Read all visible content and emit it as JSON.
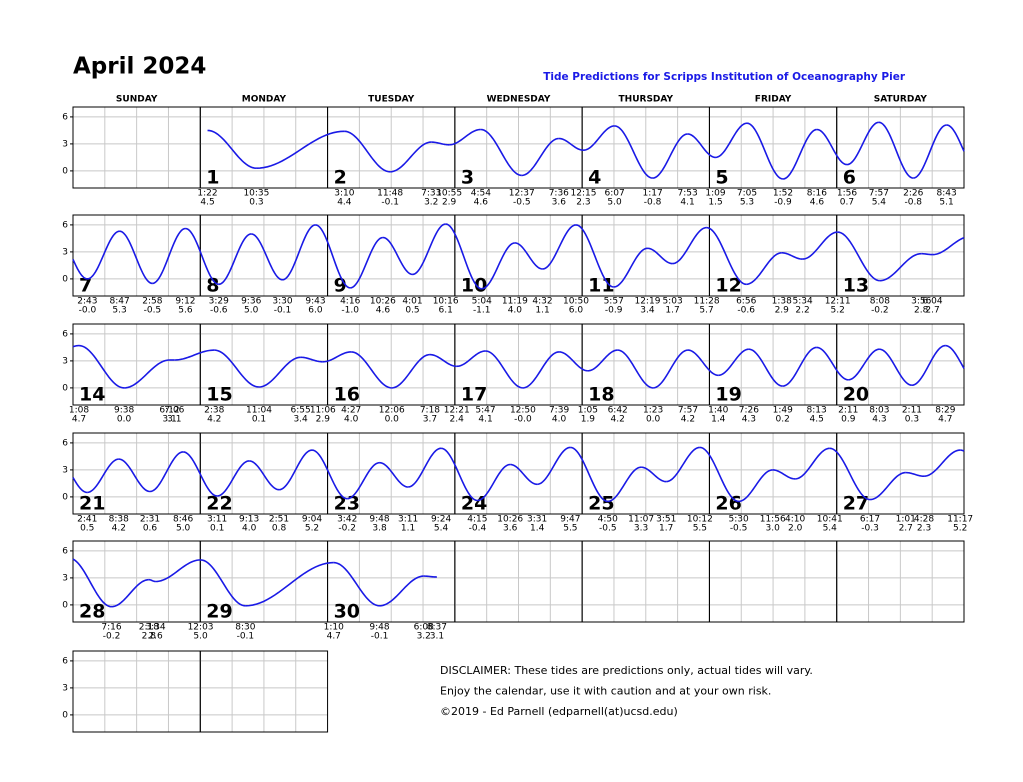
{
  "title": "April 2024",
  "subtitle": "Tide Predictions for Scripps Institution of Oceanography Pier",
  "weekdays": [
    "SUNDAY",
    "MONDAY",
    "TUESDAY",
    "WEDNESDAY",
    "THURSDAY",
    "FRIDAY",
    "SATURDAY"
  ],
  "ylim": [
    -1.9,
    7.1
  ],
  "yticks": [
    0,
    3,
    6
  ],
  "days": [
    {
      "day": 1,
      "tides": [
        {
          "time": "1:22",
          "height": "4.5"
        },
        {
          "time": "10:35",
          "height": "0.3"
        }
      ]
    },
    {
      "day": 2,
      "tides": [
        {
          "time": "3:10",
          "height": "4.4"
        },
        {
          "time": "11:48",
          "height": "-0.1"
        },
        {
          "time": "7:33",
          "height": "3.2"
        },
        {
          "time": "10:55",
          "height": "2.9"
        }
      ]
    },
    {
      "day": 3,
      "tides": [
        {
          "time": "4:54",
          "height": "4.6"
        },
        {
          "time": "12:37",
          "height": "-0.5"
        },
        {
          "time": "7:36",
          "height": "3.6"
        }
      ]
    },
    {
      "day": 4,
      "tides": [
        {
          "time": "12:15",
          "height": "2.3"
        },
        {
          "time": "6:07",
          "height": "5.0"
        },
        {
          "time": "1:17",
          "height": "-0.8"
        },
        {
          "time": "7:53",
          "height": "4.1"
        }
      ]
    },
    {
      "day": 5,
      "tides": [
        {
          "time": "1:09",
          "height": "1.5"
        },
        {
          "time": "7:05",
          "height": "5.3"
        },
        {
          "time": "1:52",
          "height": "-0.9"
        },
        {
          "time": "8:16",
          "height": "4.6"
        }
      ]
    },
    {
      "day": 6,
      "tides": [
        {
          "time": "1:56",
          "height": "0.7"
        },
        {
          "time": "7:57",
          "height": "5.4"
        },
        {
          "time": "2:26",
          "height": "-0.8"
        },
        {
          "time": "8:43",
          "height": "5.1"
        }
      ]
    },
    {
      "day": 7,
      "tides": [
        {
          "time": "2:43",
          "height": "-0.0"
        },
        {
          "time": "8:47",
          "height": "5.3"
        },
        {
          "time": "2:58",
          "height": "-0.5"
        },
        {
          "time": "9:12",
          "height": "5.6"
        }
      ]
    },
    {
      "day": 8,
      "tides": [
        {
          "time": "3:29",
          "height": "-0.6"
        },
        {
          "time": "9:36",
          "height": "5.0"
        },
        {
          "time": "3:30",
          "height": "-0.1"
        },
        {
          "time": "9:43",
          "height": "6.0"
        }
      ]
    },
    {
      "day": 9,
      "tides": [
        {
          "time": "4:16",
          "height": "-1.0"
        },
        {
          "time": "10:26",
          "height": "4.6"
        },
        {
          "time": "4:01",
          "height": "0.5"
        },
        {
          "time": "10:16",
          "height": "6.1"
        }
      ]
    },
    {
      "day": 10,
      "tides": [
        {
          "time": "5:04",
          "height": "-1.1"
        },
        {
          "time": "11:19",
          "height": "4.0"
        },
        {
          "time": "4:32",
          "height": "1.1"
        },
        {
          "time": "10:50",
          "height": "6.0"
        }
      ]
    },
    {
      "day": 11,
      "tides": [
        {
          "time": "5:57",
          "height": "-0.9"
        },
        {
          "time": "12:19",
          "height": "3.4"
        },
        {
          "time": "5:03",
          "height": "1.7"
        },
        {
          "time": "11:28",
          "height": "5.7"
        }
      ]
    },
    {
      "day": 12,
      "tides": [
        {
          "time": "6:56",
          "height": "-0.6"
        },
        {
          "time": "1:38",
          "height": "2.9"
        },
        {
          "time": "5:34",
          "height": "2.2"
        }
      ]
    },
    {
      "day": 13,
      "tides": [
        {
          "time": "12:11",
          "height": "5.2"
        },
        {
          "time": "8:08",
          "height": "-0.2"
        },
        {
          "time": "3:56",
          "height": "2.8"
        },
        {
          "time": "6:04",
          "height": "2.7"
        }
      ]
    },
    {
      "day": 14,
      "tides": [
        {
          "time": "1:08",
          "height": "4.7"
        },
        {
          "time": "9:38",
          "height": "0.0"
        },
        {
          "time": "6:12",
          "height": "3.1"
        },
        {
          "time": "7:06",
          "height": "3.1"
        }
      ]
    },
    {
      "day": 15,
      "tides": [
        {
          "time": "2:38",
          "height": "4.2"
        },
        {
          "time": "11:04",
          "height": "0.1"
        },
        {
          "time": "6:55",
          "height": "3.4"
        },
        {
          "time": "11:06",
          "height": "2.9"
        }
      ]
    },
    {
      "day": 16,
      "tides": [
        {
          "time": "4:27",
          "height": "4.0"
        },
        {
          "time": "12:06",
          "height": "0.0"
        },
        {
          "time": "7:18",
          "height": "3.7"
        }
      ]
    },
    {
      "day": 17,
      "tides": [
        {
          "time": "12:21",
          "height": "2.4"
        },
        {
          "time": "5:47",
          "height": "4.1"
        },
        {
          "time": "12:50",
          "height": "-0.0"
        },
        {
          "time": "7:39",
          "height": "4.0"
        }
      ]
    },
    {
      "day": 18,
      "tides": [
        {
          "time": "1:05",
          "height": "1.9"
        },
        {
          "time": "6:42",
          "height": "4.2"
        },
        {
          "time": "1:23",
          "height": "0.0"
        },
        {
          "time": "7:57",
          "height": "4.2"
        }
      ]
    },
    {
      "day": 19,
      "tides": [
        {
          "time": "1:40",
          "height": "1.4"
        },
        {
          "time": "7:26",
          "height": "4.3"
        },
        {
          "time": "1:49",
          "height": "0.2"
        },
        {
          "time": "8:13",
          "height": "4.5"
        }
      ]
    },
    {
      "day": 20,
      "tides": [
        {
          "time": "2:11",
          "height": "0.9"
        },
        {
          "time": "8:03",
          "height": "4.3"
        },
        {
          "time": "2:11",
          "height": "0.3"
        },
        {
          "time": "8:29",
          "height": "4.7"
        }
      ]
    },
    {
      "day": 21,
      "tides": [
        {
          "time": "2:41",
          "height": "0.5"
        },
        {
          "time": "8:38",
          "height": "4.2"
        },
        {
          "time": "2:31",
          "height": "0.6"
        },
        {
          "time": "8:46",
          "height": "5.0"
        }
      ]
    },
    {
      "day": 22,
      "tides": [
        {
          "time": "3:11",
          "height": "0.1"
        },
        {
          "time": "9:13",
          "height": "4.0"
        },
        {
          "time": "2:51",
          "height": "0.8"
        },
        {
          "time": "9:04",
          "height": "5.2"
        }
      ]
    },
    {
      "day": 23,
      "tides": [
        {
          "time": "3:42",
          "height": "-0.2"
        },
        {
          "time": "9:48",
          "height": "3.8"
        },
        {
          "time": "3:11",
          "height": "1.1"
        },
        {
          "time": "9:24",
          "height": "5.4"
        }
      ]
    },
    {
      "day": 24,
      "tides": [
        {
          "time": "4:15",
          "height": "-0.4"
        },
        {
          "time": "10:26",
          "height": "3.6"
        },
        {
          "time": "3:31",
          "height": "1.4"
        },
        {
          "time": "9:47",
          "height": "5.5"
        }
      ]
    },
    {
      "day": 25,
      "tides": [
        {
          "time": "4:50",
          "height": "-0.5"
        },
        {
          "time": "11:07",
          "height": "3.3"
        },
        {
          "time": "3:51",
          "height": "1.7"
        },
        {
          "time": "10:12",
          "height": "5.5"
        }
      ]
    },
    {
      "day": 26,
      "tides": [
        {
          "time": "5:30",
          "height": "-0.5"
        },
        {
          "time": "11:56",
          "height": "3.0"
        },
        {
          "time": "4:10",
          "height": "2.0"
        },
        {
          "time": "10:41",
          "height": "5.4"
        }
      ]
    },
    {
      "day": 27,
      "tides": [
        {
          "time": "6:17",
          "height": "-0.3"
        },
        {
          "time": "1:01",
          "height": "2.7"
        },
        {
          "time": "4:28",
          "height": "2.3"
        },
        {
          "time": "11:17",
          "height": "5.2"
        }
      ]
    },
    {
      "day": 28,
      "tides": [
        {
          "time": "7:16",
          "height": "-0.2"
        },
        {
          "time": "2:18",
          "height": "2.8"
        },
        {
          "time": "3:34",
          "height": "2.6"
        }
      ]
    },
    {
      "day": 29,
      "tides": [
        {
          "time": "12:03",
          "height": "5.0"
        },
        {
          "time": "8:30",
          "height": "-0.1"
        }
      ]
    },
    {
      "day": 30,
      "tides": [
        {
          "time": "1:10",
          "height": "4.7"
        },
        {
          "time": "9:48",
          "height": "-0.1"
        },
        {
          "time": "6:08",
          "height": "3.2"
        },
        {
          "time": "8:37",
          "height": "3.1"
        }
      ]
    }
  ],
  "disclaimer": [
    "DISCLAIMER: These tides are predictions only, actual tides will vary.",
    "Enjoy the calendar, use it with caution and at your own risk.",
    "©2019 - Ed Parnell (edparnell(at)ucsd.edu)"
  ]
}
